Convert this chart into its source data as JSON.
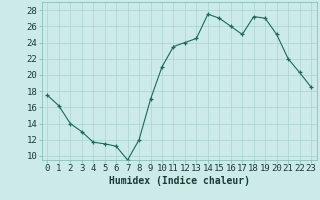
{
  "x": [
    0,
    1,
    2,
    3,
    4,
    5,
    6,
    7,
    8,
    9,
    10,
    11,
    12,
    13,
    14,
    15,
    16,
    17,
    18,
    19,
    20,
    21,
    22,
    23
  ],
  "y": [
    17.5,
    16.2,
    14.0,
    13.0,
    11.7,
    11.5,
    11.2,
    9.5,
    12.0,
    17.0,
    21.0,
    23.5,
    24.0,
    24.5,
    27.5,
    27.0,
    26.0,
    25.0,
    27.2,
    27.0,
    25.0,
    22.0,
    20.3,
    18.5
  ],
  "line_color": "#1a6b5a",
  "marker": "+",
  "marker_size": 3,
  "bg_color": "#cceae7",
  "grid_color": "#aad4d0",
  "xlabel": "Humidex (Indice chaleur)",
  "xlim": [
    -0.5,
    23.5
  ],
  "ylim": [
    9.5,
    29
  ],
  "yticks": [
    10,
    12,
    14,
    16,
    18,
    20,
    22,
    24,
    26,
    28
  ],
  "xticks": [
    0,
    1,
    2,
    3,
    4,
    5,
    6,
    7,
    8,
    9,
    10,
    11,
    12,
    13,
    14,
    15,
    16,
    17,
    18,
    19,
    20,
    21,
    22,
    23
  ],
  "label_fontsize": 7,
  "tick_fontsize": 6.5
}
